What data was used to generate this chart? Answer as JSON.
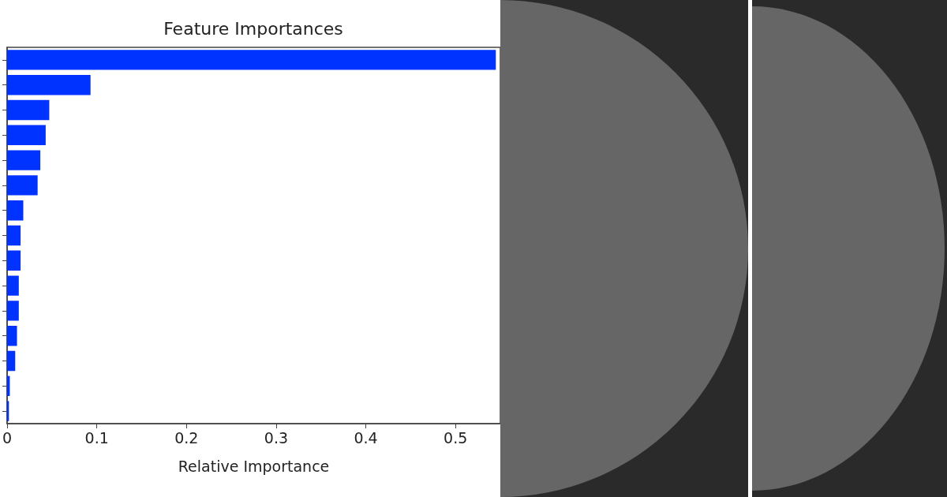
{
  "chart_data": {
    "type": "bar",
    "orientation": "horizontal",
    "title": "Feature Importances",
    "xlabel": "Relative Importance",
    "categories": [
      null,
      null,
      null,
      null,
      null,
      null,
      null,
      null,
      null,
      null,
      null,
      null,
      null,
      null,
      null
    ],
    "values": [
      0.545,
      0.093,
      0.047,
      0.043,
      0.037,
      0.034,
      0.018,
      0.015,
      0.015,
      0.013,
      0.013,
      0.011,
      0.009,
      0.003,
      0.002
    ],
    "color": "#0033ff",
    "xlim": [
      0,
      0.55
    ],
    "xticks": [
      0,
      0.1,
      0.2,
      0.3,
      0.4,
      0.5
    ],
    "tick_labels": "x",
    "grid": false
  }
}
